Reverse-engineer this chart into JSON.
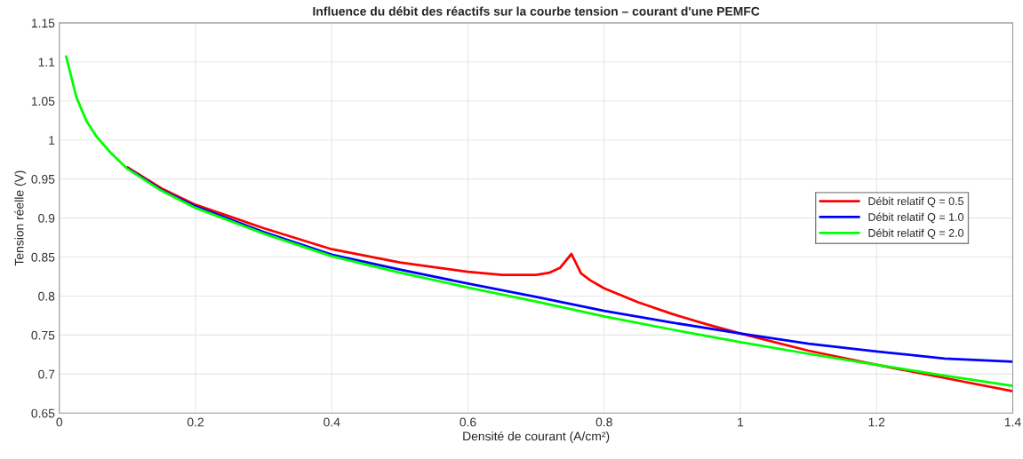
{
  "chart_data": {
    "type": "line",
    "title": "Influence du débit des réactifs sur la courbe tension – courant d'une PEMFC",
    "xlabel": "Densité de courant (A/cm²)",
    "ylabel": "Tension réelle (V)",
    "xlim": [
      0,
      1.4
    ],
    "xticks": [
      0,
      0.2,
      0.4,
      0.6,
      0.8,
      1,
      1.2,
      1.4
    ],
    "ylim": [
      0.65,
      1.15
    ],
    "yticks": [
      0.65,
      0.7,
      0.75,
      0.8,
      0.85,
      0.9,
      0.95,
      1,
      1.05,
      1.1,
      1.15
    ],
    "grid": true,
    "legend": "center right",
    "marker": "none",
    "line_style": "solid",
    "series": [
      {
        "name": "Débit relatif Q = 0.5",
        "color": "#ff0000",
        "x": [
          0.1,
          0.15,
          0.2,
          0.3,
          0.4,
          0.5,
          0.6,
          0.65,
          0.7,
          0.72,
          0.735,
          0.752,
          0.766,
          0.78,
          0.8,
          0.85,
          0.9,
          0.95,
          1.0,
          1.1,
          1.2,
          1.3,
          1.4
        ],
        "values": [
          0.965,
          0.938,
          0.917,
          0.887,
          0.86,
          0.843,
          0.831,
          0.827,
          0.827,
          0.83,
          0.836,
          0.854,
          0.829,
          0.82,
          0.81,
          0.792,
          0.777,
          0.764,
          0.752,
          0.73,
          0.712,
          0.695,
          0.678
        ]
      },
      {
        "name": "Débit relatif Q = 1.0",
        "color": "#0000ff",
        "x": [
          0.1,
          0.15,
          0.2,
          0.3,
          0.4,
          0.5,
          0.6,
          0.7,
          0.8,
          0.9,
          1.0,
          1.1,
          1.2,
          1.3,
          1.4
        ],
        "values": [
          0.964,
          0.936,
          0.915,
          0.882,
          0.853,
          0.834,
          0.816,
          0.799,
          0.781,
          0.766,
          0.752,
          0.739,
          0.729,
          0.72,
          0.716
        ]
      },
      {
        "name": "Débit relatif Q = 2.0",
        "color": "#00ff00",
        "x": [
          0.01,
          0.025,
          0.04,
          0.055,
          0.075,
          0.1,
          0.15,
          0.2,
          0.3,
          0.4,
          0.5,
          0.6,
          0.7,
          0.8,
          0.9,
          1.0,
          1.1,
          1.2,
          1.3,
          1.4
        ],
        "values": [
          1.107,
          1.055,
          1.024,
          1.004,
          0.984,
          0.963,
          0.935,
          0.913,
          0.88,
          0.851,
          0.83,
          0.811,
          0.793,
          0.774,
          0.757,
          0.741,
          0.726,
          0.712,
          0.698,
          0.685
        ]
      }
    ]
  }
}
